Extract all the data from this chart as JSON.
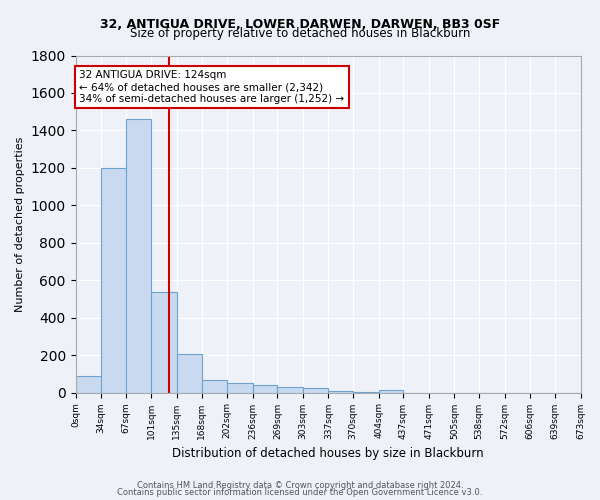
{
  "title": "32, ANTIGUA DRIVE, LOWER DARWEN, DARWEN, BB3 0SF",
  "subtitle": "Size of property relative to detached houses in Blackburn",
  "xlabel": "Distribution of detached houses by size in Blackburn",
  "ylabel": "Number of detached properties",
  "bar_edges": [
    0,
    34,
    67,
    101,
    135,
    168,
    202,
    236,
    269,
    303,
    337,
    370,
    404,
    437,
    471,
    505,
    538,
    572,
    606,
    639,
    673
  ],
  "bar_heights": [
    90,
    1200,
    1460,
    535,
    205,
    65,
    50,
    40,
    28,
    22,
    8,
    3,
    12,
    0,
    0,
    0,
    0,
    0,
    0,
    0
  ],
  "bar_color": "#c9d9f0",
  "bar_edge_color": "#6ea3d0",
  "vertical_line_x": 124,
  "vertical_line_color": "#cc0000",
  "annotation_text": "32 ANTIGUA DRIVE: 124sqm\n← 64% of detached houses are smaller (2,342)\n34% of semi-detached houses are larger (1,252) →",
  "annotation_box_color": "white",
  "annotation_box_edge_color": "#cc0000",
  "ylim": [
    0,
    1800
  ],
  "background_color": "#eef2f8",
  "grid_color": "white",
  "footer_line1": "Contains HM Land Registry data © Crown copyright and database right 2024.",
  "footer_line2": "Contains public sector information licensed under the Open Government Licence v3.0.",
  "tick_labels": [
    "0sqm",
    "34sqm",
    "67sqm",
    "101sqm",
    "135sqm",
    "168sqm",
    "202sqm",
    "236sqm",
    "269sqm",
    "303sqm",
    "337sqm",
    "370sqm",
    "404sqm",
    "437sqm",
    "471sqm",
    "505sqm",
    "538sqm",
    "572sqm",
    "606sqm",
    "639sqm",
    "673sqm"
  ]
}
